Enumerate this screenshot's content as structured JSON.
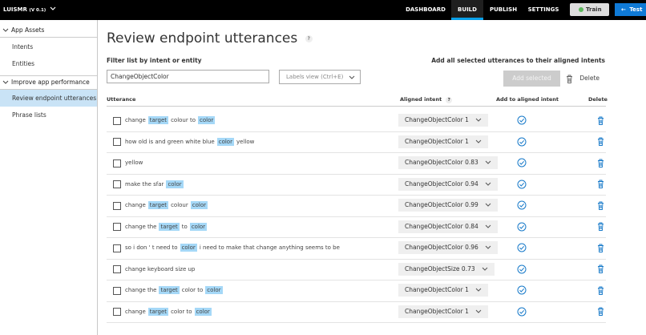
{
  "nav": {
    "app_name": "LUISMR",
    "version": "(V 0.1)",
    "tabs": [
      "DASHBOARD",
      "BUILD",
      "PUBLISH",
      "SETTINGS"
    ],
    "active_tab": 1,
    "train": "Train",
    "test": "Test"
  },
  "sidebar": {
    "sections": [
      {
        "title": "App Assets",
        "items": [
          "Intents",
          "Entities"
        ]
      },
      {
        "title": "Improve app performance",
        "items": [
          "Review endpoint utterances",
          "Phrase lists"
        ]
      }
    ],
    "selected": [
      1,
      0
    ]
  },
  "page": {
    "title": "Review endpoint utterances",
    "help": "?",
    "filter_label": "Filter list by intent or entity",
    "filter_value": "ChangeObjectColor",
    "labels_view": "Labels view (Ctrl+E)",
    "add_all_label": "Add all selected utterances to their aligned intents",
    "add_selected": "Add selected",
    "delete": "Delete"
  },
  "table": {
    "headers": [
      "Utterance",
      "Aligned intent",
      "Add to aligned intent",
      "Delete"
    ],
    "aligned_help": "?",
    "rows": [
      {
        "segments": [
          {
            "text": "change",
            "highlight": false
          },
          {
            "text": "target",
            "highlight": true
          },
          {
            "text": "colour to",
            "highlight": false
          },
          {
            "text": "color",
            "highlight": true
          }
        ],
        "intent": "ChangeObjectColor 1"
      },
      {
        "segments": [
          {
            "text": "how old is and green white blue",
            "highlight": false
          },
          {
            "text": "color",
            "highlight": true
          },
          {
            "text": "yellow",
            "highlight": false
          }
        ],
        "intent": "ChangeObjectColor 1"
      },
      {
        "segments": [
          {
            "text": "yellow",
            "highlight": false
          }
        ],
        "intent": "ChangeObjectColor 0.83"
      },
      {
        "segments": [
          {
            "text": "make the sfar",
            "highlight": false
          },
          {
            "text": "color",
            "highlight": true
          }
        ],
        "intent": "ChangeObjectColor 0.94"
      },
      {
        "segments": [
          {
            "text": "change",
            "highlight": false
          },
          {
            "text": "target",
            "highlight": true
          },
          {
            "text": "colour",
            "highlight": false
          },
          {
            "text": "color",
            "highlight": true
          }
        ],
        "intent": "ChangeObjectColor 0.99"
      },
      {
        "segments": [
          {
            "text": "change the",
            "highlight": false
          },
          {
            "text": "target",
            "highlight": true
          },
          {
            "text": "to",
            "highlight": false
          },
          {
            "text": "color",
            "highlight": true
          }
        ],
        "intent": "ChangeObjectColor 0.84"
      },
      {
        "segments": [
          {
            "text": "so i don ' t need to",
            "highlight": false
          },
          {
            "text": "color",
            "highlight": true
          },
          {
            "text": "i need to make that change anything seems to be",
            "highlight": false
          }
        ],
        "intent": "ChangeObjectColor 0.96"
      },
      {
        "segments": [
          {
            "text": "change keyboard size up",
            "highlight": false
          }
        ],
        "intent": "ChangeObjectSize 0.73"
      },
      {
        "segments": [
          {
            "text": "change the",
            "highlight": false
          },
          {
            "text": "target",
            "highlight": true
          },
          {
            "text": "color to",
            "highlight": false
          },
          {
            "text": "color",
            "highlight": true
          }
        ],
        "intent": "ChangeObjectColor 1"
      },
      {
        "segments": [
          {
            "text": "change",
            "highlight": false
          },
          {
            "text": "target",
            "highlight": true
          },
          {
            "text": "color to",
            "highlight": false
          },
          {
            "text": "color",
            "highlight": true
          }
        ],
        "intent": "ChangeObjectColor 1"
      }
    ]
  }
}
